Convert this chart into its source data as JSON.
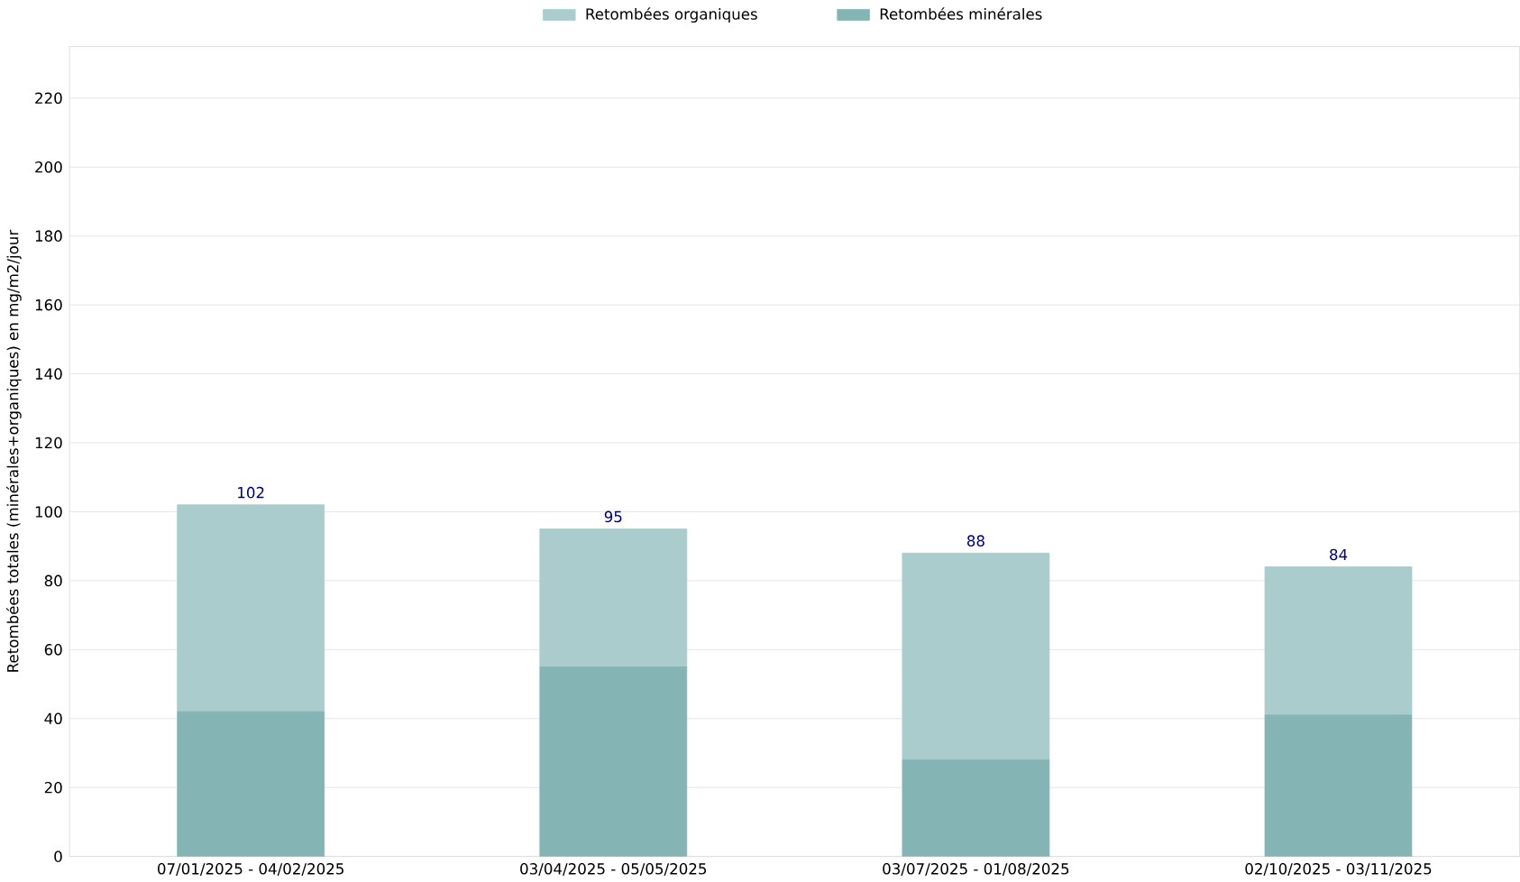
{
  "chart_data": {
    "type": "bar",
    "stacked": true,
    "ylabel": "Retombées totales (minérales+organiques) en mg/m2/jour",
    "categories": [
      "07/01/2025 - 04/02/2025",
      "03/04/2025 - 05/05/2025",
      "03/07/2025 - 01/08/2025",
      "02/10/2025 - 03/11/2025"
    ],
    "series": [
      {
        "name": "Retombées minérales",
        "color": "#84b4b4",
        "values": [
          42,
          55,
          28,
          41
        ]
      },
      {
        "name": "Retombées organiques",
        "color": "#aacccc",
        "values": [
          60,
          40,
          60,
          43
        ]
      }
    ],
    "totals": [
      "102",
      "95",
      "88",
      "84"
    ],
    "ylim": [
      0,
      235
    ],
    "yticks": [
      0,
      20,
      40,
      60,
      80,
      100,
      120,
      140,
      160,
      180,
      200,
      220
    ],
    "grid": "y",
    "legend": "top"
  }
}
